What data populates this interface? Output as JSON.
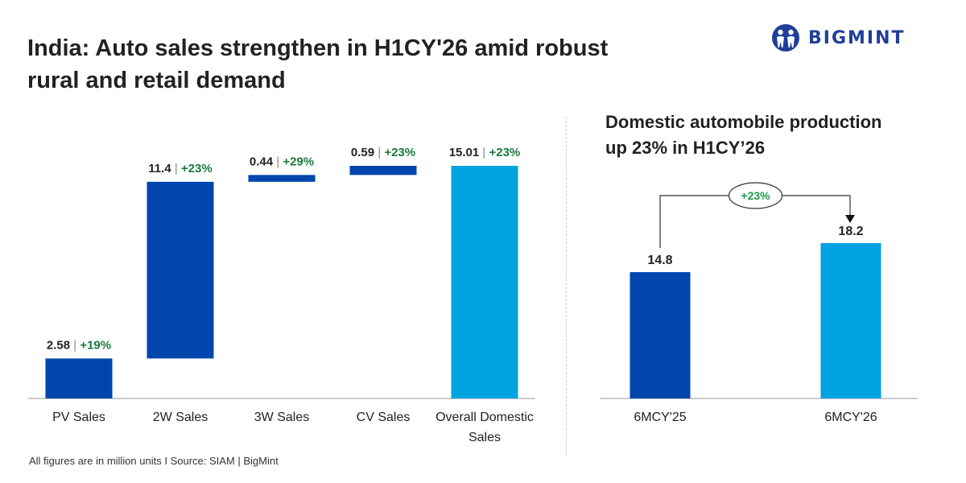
{
  "page": {
    "title_line1": "India: Auto sales strengthen in H1CY'26 amid robust",
    "title_line2": "rural and retail demand",
    "footnote": "All figures are in million units I Source: SIAM | BigMint",
    "logo_text": "BIGMINT",
    "logo_icon": "people-icon"
  },
  "colors": {
    "dark_blue": "#0046ad",
    "light_blue": "#00a3e0",
    "green": "#1a7a3c",
    "text": "#222222",
    "logo": "#1f3f99"
  },
  "chart_data": [
    {
      "type": "bar",
      "subtype": "waterfall",
      "title": "",
      "xlabel": "",
      "ylabel": "",
      "categories": [
        "PV Sales",
        "2W Sales",
        "3W Sales",
        "CV Sales",
        "Overall Domestic Sales"
      ],
      "category_lines": [
        [
          "PV Sales"
        ],
        [
          "2W Sales"
        ],
        [
          "3W Sales"
        ],
        [
          "CV Sales"
        ],
        [
          "Overall Domestic",
          "Sales"
        ]
      ],
      "values": [
        2.58,
        11.4,
        0.44,
        0.59,
        15.01
      ],
      "value_labels": [
        "2.58",
        "11.4",
        "0.44",
        "0.59",
        "15.01"
      ],
      "growth_labels": [
        "+19%",
        "+23%",
        "+29%",
        "+23%",
        "+23%"
      ],
      "is_total": [
        false,
        false,
        false,
        false,
        true
      ],
      "ylim": [
        0,
        15.01
      ],
      "grid": false
    },
    {
      "type": "bar",
      "title": "Domestic automobile production",
      "title_line2": "up 23% in H1CY’26",
      "categories": [
        "6MCY'25",
        "6MCY'26"
      ],
      "values": [
        14.8,
        18.2
      ],
      "value_labels": [
        "14.8",
        "18.2"
      ],
      "annotation": "+23%",
      "ylim": [
        0,
        18.2
      ],
      "grid": false
    }
  ]
}
